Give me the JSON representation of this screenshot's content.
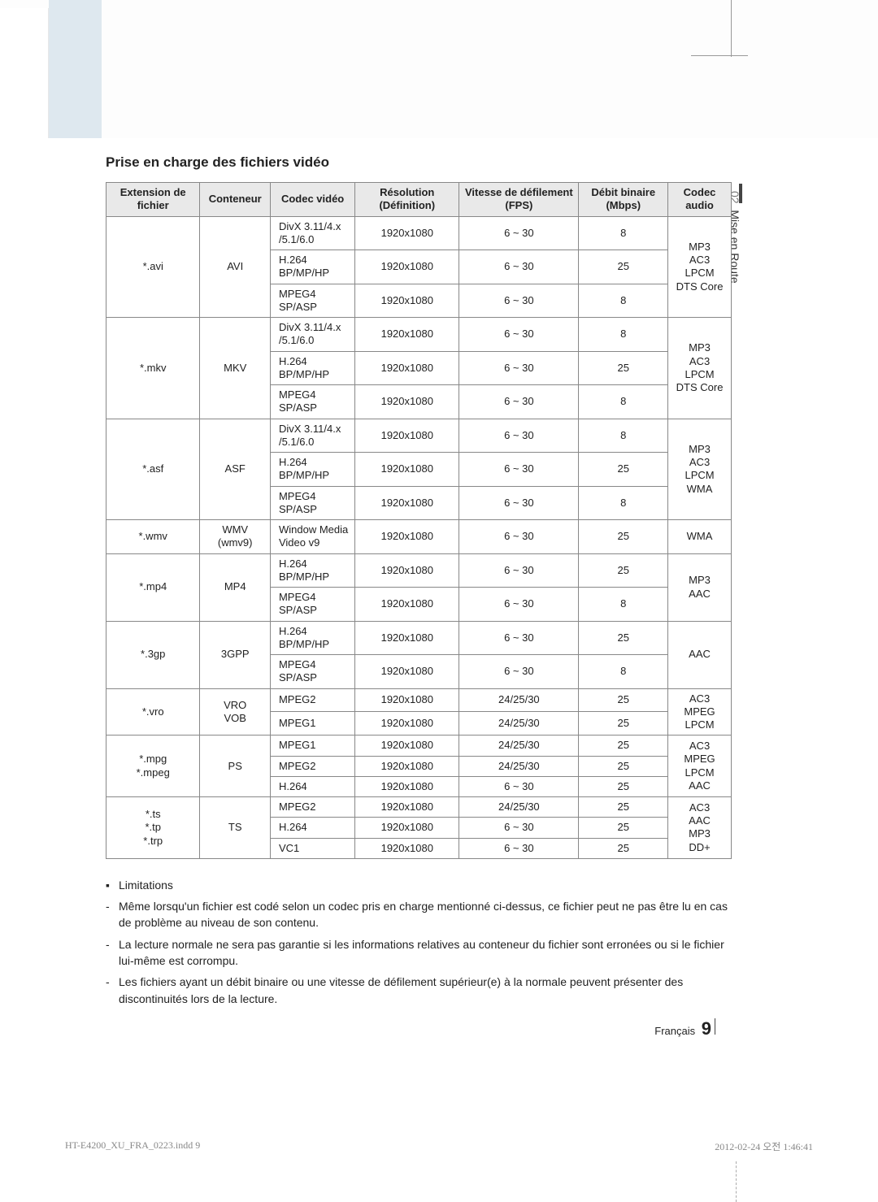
{
  "side_tab": {
    "num": "02",
    "label": "Mise en Route"
  },
  "section_title": "Prise en charge des fichiers vidéo",
  "headers": {
    "ext": "Extension de fichier",
    "cont": "Conteneur",
    "vcodec": "Codec vidéo",
    "res": "Résolution (Définition)",
    "fps": "Vitesse de défilement (FPS)",
    "bitrate": "Débit binaire (Mbps)",
    "acodec": "Codec audio"
  },
  "groups": [
    {
      "ext": "*.avi",
      "cont": "AVI",
      "acodec": "MP3\nAC3\nLPCM\nDTS Core",
      "rows": [
        {
          "vcodec": "DivX 3.11/4.x\n/5.1/6.0",
          "res": "1920x1080",
          "fps": "6 ~ 30",
          "br": "8"
        },
        {
          "vcodec": "H.264 BP/MP/HP",
          "res": "1920x1080",
          "fps": "6 ~ 30",
          "br": "25"
        },
        {
          "vcodec": "MPEG4 SP/ASP",
          "res": "1920x1080",
          "fps": "6 ~ 30",
          "br": "8"
        }
      ]
    },
    {
      "ext": "*.mkv",
      "cont": "MKV",
      "acodec": "MP3\nAC3\nLPCM\nDTS Core",
      "rows": [
        {
          "vcodec": "DivX 3.11/4.x\n/5.1/6.0",
          "res": "1920x1080",
          "fps": "6 ~ 30",
          "br": "8"
        },
        {
          "vcodec": "H.264 BP/MP/HP",
          "res": "1920x1080",
          "fps": "6 ~ 30",
          "br": "25"
        },
        {
          "vcodec": "MPEG4 SP/ASP",
          "res": "1920x1080",
          "fps": "6 ~ 30",
          "br": "8"
        }
      ]
    },
    {
      "ext": "*.asf",
      "cont": "ASF",
      "acodec": "MP3\nAC3\nLPCM\nWMA",
      "rows": [
        {
          "vcodec": "DivX 3.11/4.x\n/5.1/6.0",
          "res": "1920x1080",
          "fps": "6 ~ 30",
          "br": "8"
        },
        {
          "vcodec": "H.264 BP/MP/HP",
          "res": "1920x1080",
          "fps": "6 ~ 30",
          "br": "25"
        },
        {
          "vcodec": "MPEG4 SP/ASP",
          "res": "1920x1080",
          "fps": "6 ~ 30",
          "br": "8"
        }
      ]
    },
    {
      "ext": "*.wmv",
      "cont": "WMV (wmv9)",
      "acodec": "WMA",
      "rows": [
        {
          "vcodec": "Window Media\nVideo v9",
          "res": "1920x1080",
          "fps": "6 ~ 30",
          "br": "25"
        }
      ]
    },
    {
      "ext": "*.mp4",
      "cont": "MP4",
      "acodec": "MP3\nAAC",
      "rows": [
        {
          "vcodec": "H.264 BP/MP/HP",
          "res": "1920x1080",
          "fps": "6 ~ 30",
          "br": "25"
        },
        {
          "vcodec": "MPEG4 SP/ASP",
          "res": "1920x1080",
          "fps": "6 ~ 30",
          "br": "8"
        }
      ]
    },
    {
      "ext": "*.3gp",
      "cont": "3GPP",
      "acodec": "AAC",
      "rows": [
        {
          "vcodec": "H.264 BP/MP/HP",
          "res": "1920x1080",
          "fps": "6 ~ 30",
          "br": "25"
        },
        {
          "vcodec": "MPEG4 SP/ASP",
          "res": "1920x1080",
          "fps": "6 ~ 30",
          "br": "8"
        }
      ]
    },
    {
      "ext": "*.vro",
      "cont": "VRO\nVOB",
      "acodec": "AC3\nMPEG\nLPCM",
      "rows": [
        {
          "vcodec": "MPEG2",
          "res": "1920x1080",
          "fps": "24/25/30",
          "br": "25"
        },
        {
          "vcodec": "MPEG1",
          "res": "1920x1080",
          "fps": "24/25/30",
          "br": "25"
        }
      ]
    },
    {
      "ext": "*.mpg\n*.mpeg",
      "cont": "PS",
      "acodec": "AC3\nMPEG\nLPCM\nAAC",
      "rows": [
        {
          "vcodec": "MPEG1",
          "res": "1920x1080",
          "fps": "24/25/30",
          "br": "25"
        },
        {
          "vcodec": "MPEG2",
          "res": "1920x1080",
          "fps": "24/25/30",
          "br": "25"
        },
        {
          "vcodec": "H.264",
          "res": "1920x1080",
          "fps": "6 ~ 30",
          "br": "25"
        }
      ]
    },
    {
      "ext": "*.ts\n*.tp\n*.trp",
      "cont": "TS",
      "acodec": "AC3\nAAC\nMP3\nDD+",
      "rows": [
        {
          "vcodec": "MPEG2",
          "res": "1920x1080",
          "fps": "24/25/30",
          "br": "25"
        },
        {
          "vcodec": "H.264",
          "res": "1920x1080",
          "fps": "6 ~ 30",
          "br": "25"
        },
        {
          "vcodec": "VC1",
          "res": "1920x1080",
          "fps": "6 ~ 30",
          "br": "25"
        }
      ]
    }
  ],
  "notes": {
    "heading": "Limitations",
    "items": [
      "Même lorsqu'un fichier est codé selon un codec pris en charge mentionné ci-dessus, ce fichier peut ne pas être lu en cas de problème au niveau de son contenu.",
      "La lecture normale ne sera pas garantie si les informations relatives au conteneur du fichier sont erronées ou si le fichier lui-même est corrompu.",
      "Les fichiers ayant un débit binaire ou une vitesse de défilement supérieur(e) à la normale peuvent présenter des discontinuités lors de la lecture."
    ]
  },
  "footer": {
    "lang": "Français",
    "page": "9"
  },
  "imprint": {
    "left": "HT-E4200_XU_FRA_0223.indd   9",
    "right": "2012-02-24   오전 1:46:41"
  }
}
